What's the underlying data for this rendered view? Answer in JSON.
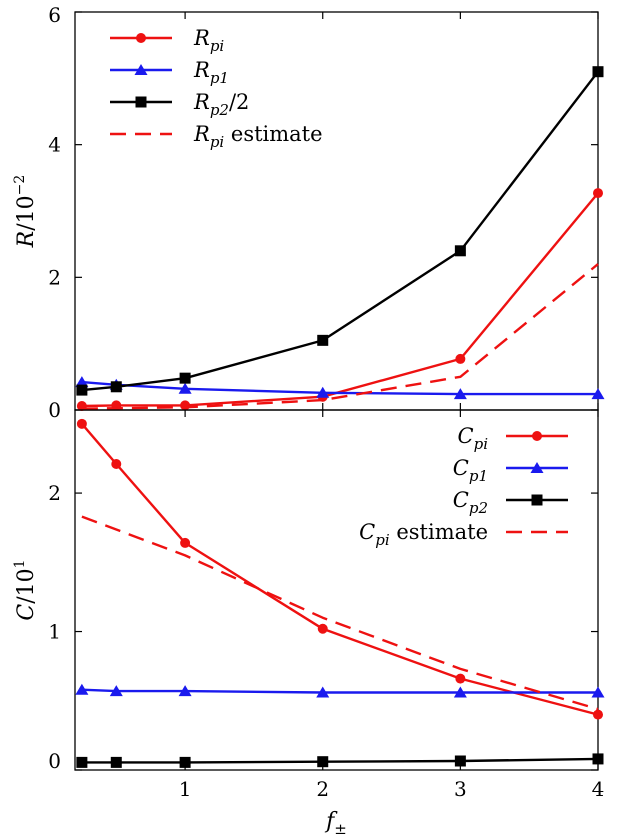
{
  "colors": {
    "red": "#ee1111",
    "blue": "#1a1aee",
    "black": "#000000"
  },
  "chart_data": [
    {
      "type": "line",
      "title": "",
      "xlabel": "",
      "ylabel": "R/10^-2",
      "ylabel_parts": {
        "base": "R/10",
        "exp": "−2"
      },
      "xlim": [
        0.2,
        4.0
      ],
      "ylim": [
        0,
        6
      ],
      "yticks": [
        0,
        2,
        4,
        6
      ],
      "ytick_labels": [
        "0",
        "2",
        "4",
        "6"
      ],
      "legend_position": "top-left",
      "grid": false,
      "series": [
        {
          "name": "R_pi",
          "label": {
            "main": "R",
            "sub": "pi",
            "suffix": ""
          },
          "color": "#ee1111",
          "marker": "circle",
          "style": "solid",
          "x": [
            0.25,
            0.5,
            1,
            2,
            3,
            4
          ],
          "y": [
            0.06,
            0.07,
            0.07,
            0.2,
            0.77,
            3.27
          ]
        },
        {
          "name": "R_p1",
          "label": {
            "main": "R",
            "sub": "p1",
            "suffix": ""
          },
          "color": "#1a1aee",
          "marker": "triangle",
          "style": "solid",
          "x": [
            0.25,
            0.5,
            1,
            2,
            3,
            4
          ],
          "y": [
            0.42,
            0.38,
            0.32,
            0.26,
            0.24,
            0.24
          ]
        },
        {
          "name": "R_p2/2",
          "label": {
            "main": "R",
            "sub": "p2",
            "suffix": "/2"
          },
          "color": "#000000",
          "marker": "square",
          "style": "solid",
          "x": [
            0.25,
            0.5,
            1,
            2,
            3,
            4
          ],
          "y": [
            0.3,
            0.35,
            0.48,
            1.05,
            2.4,
            5.1
          ]
        },
        {
          "name": "R_pi estimate",
          "label": {
            "main": "R",
            "sub": "pi",
            "suffix": " estimate"
          },
          "color": "#ee1111",
          "marker": "none",
          "style": "dashed",
          "x": [
            0.25,
            1,
            2,
            3,
            4
          ],
          "y": [
            0.02,
            0.04,
            0.15,
            0.5,
            2.2
          ]
        }
      ]
    },
    {
      "type": "line",
      "title": "",
      "xlabel": "f±",
      "xlabel_parts": {
        "base": "f",
        "sub": "±"
      },
      "ylabel": "C/10^1",
      "ylabel_parts": {
        "base": "C/10",
        "exp": "1"
      },
      "xlim": [
        0.2,
        4.0
      ],
      "ylim": [
        0,
        2.6
      ],
      "xticks": [
        1,
        2,
        3,
        4
      ],
      "xtick_labels": [
        "1",
        "2",
        "3",
        "4"
      ],
      "yticks": [
        0,
        1,
        2
      ],
      "ytick_labels": [
        "0",
        "1",
        "2"
      ],
      "legend_position": "top-right",
      "grid": false,
      "series": [
        {
          "name": "C_pi",
          "label": {
            "main": "C",
            "sub": "pi",
            "suffix": ""
          },
          "color": "#ee1111",
          "marker": "circle",
          "style": "solid",
          "x": [
            0.25,
            0.5,
            1,
            2,
            3,
            4
          ],
          "y": [
            2.5,
            2.21,
            1.64,
            1.02,
            0.66,
            0.4
          ]
        },
        {
          "name": "C_p1",
          "label": {
            "main": "C",
            "sub": "p1",
            "suffix": ""
          },
          "color": "#1a1aee",
          "marker": "triangle",
          "style": "solid",
          "x": [
            0.25,
            0.5,
            1,
            2,
            3,
            4
          ],
          "y": [
            0.58,
            0.57,
            0.57,
            0.56,
            0.56,
            0.56
          ]
        },
        {
          "name": "C_p2",
          "label": {
            "main": "C",
            "sub": "p2",
            "suffix": ""
          },
          "color": "#000000",
          "marker": "square",
          "style": "solid",
          "x": [
            0.25,
            0.5,
            1,
            2,
            3,
            4
          ],
          "y": [
            0.055,
            0.055,
            0.055,
            0.06,
            0.065,
            0.08
          ]
        },
        {
          "name": "C_pi estimate",
          "label": {
            "main": "C",
            "sub": "pi",
            "suffix": " estimate"
          },
          "color": "#ee1111",
          "marker": "none",
          "style": "dashed",
          "x": [
            0.25,
            1,
            2,
            3,
            4
          ],
          "y": [
            1.83,
            1.55,
            1.1,
            0.73,
            0.44
          ]
        }
      ]
    }
  ]
}
